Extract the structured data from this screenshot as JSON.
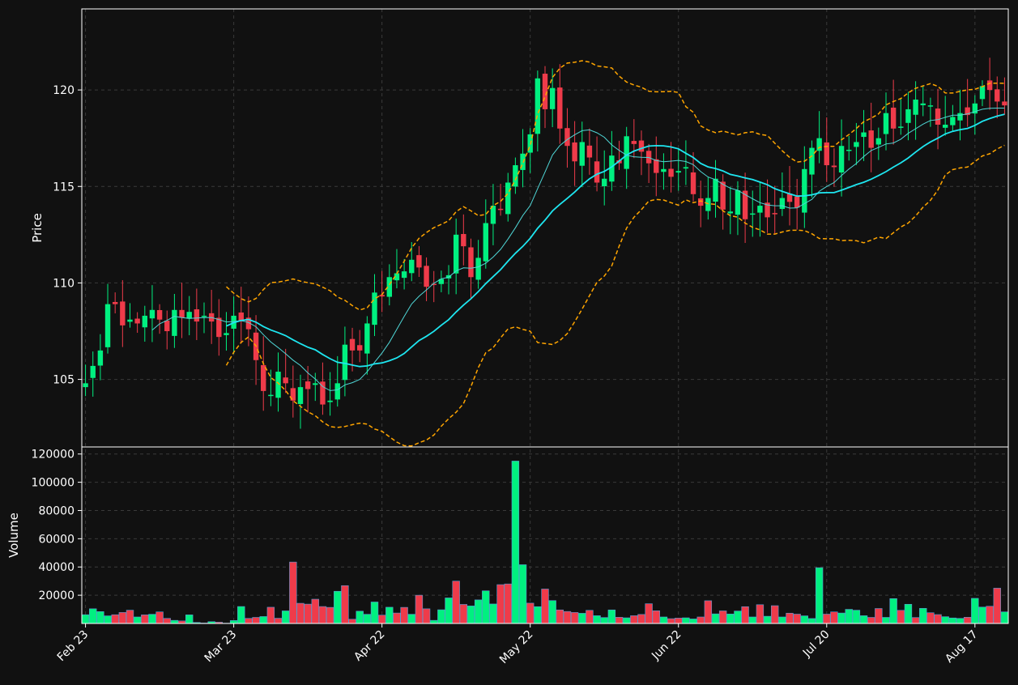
{
  "colors": {
    "background": "#111111",
    "up": "#00f080",
    "down": "#ef3b4a",
    "bollinger": "#ffa500",
    "ma_slow": "#1ee6f0",
    "ma_fast": "#4fd6d6",
    "grid": "#3a3a3a",
    "axes": "#ffffff"
  },
  "chart_data": {
    "type": "candlestick",
    "grid": true,
    "price_panel": {
      "ylabel": "Price",
      "ylim": [
        101.5,
        124.2
      ],
      "yticks": [
        105,
        110,
        115,
        120
      ]
    },
    "volume_panel": {
      "ylabel": "Volume",
      "ylim": [
        0,
        125000
      ],
      "yticks": [
        20000,
        40000,
        60000,
        80000,
        100000,
        120000
      ],
      "ytick_labels": [
        "20000",
        "40000",
        "60000",
        "80000",
        "100000",
        "120000"
      ]
    },
    "x_ticks": [
      {
        "index": 0,
        "label": "Feb 23"
      },
      {
        "index": 20,
        "label": "Mar 23"
      },
      {
        "index": 40,
        "label": "Apr 22"
      },
      {
        "index": 60,
        "label": "May 22"
      },
      {
        "index": 80,
        "label": "Jun 22"
      },
      {
        "index": 100,
        "label": "Jul 20"
      },
      {
        "index": 120,
        "label": "Aug 17"
      }
    ],
    "ohlc_close": [
      104.8,
      105.7,
      106.5,
      108.9,
      108.9,
      107.8,
      108.1,
      107.9,
      108.3,
      108.6,
      108.1,
      107.5,
      108.6,
      108.2,
      108.5,
      108.0,
      108.3,
      108.0,
      107.2,
      107.4,
      108.3,
      108.0,
      107.6,
      106.0,
      104.4,
      104.2,
      105.4,
      104.8,
      103.9,
      104.6,
      104.5,
      104.8,
      103.7,
      103.9,
      104.8,
      106.8,
      106.5,
      106.5,
      107.9,
      109.5,
      109.3,
      110.3,
      110.5,
      110.6,
      111.2,
      110.8,
      109.8,
      109.9,
      110.2,
      110.4,
      112.5,
      111.9,
      110.3,
      111.3,
      113.1,
      114.0,
      113.8,
      115.2,
      116.1,
      116.7,
      117.7,
      120.6,
      119.0,
      120.1,
      118.0,
      117.1,
      116.3,
      117.3,
      116.5,
      115.2,
      115.4,
      116.6,
      116.2,
      117.6,
      117.2,
      116.8,
      116.2,
      115.7,
      115.9,
      115.5,
      115.8,
      116.0,
      114.6,
      114.0,
      114.4,
      115.4,
      113.8,
      113.7,
      114.8,
      113.3,
      113.6,
      114.0,
      113.4,
      113.6,
      114.4,
      114.2,
      113.9,
      115.9,
      117.0,
      117.5,
      116.1,
      116.0,
      117.1,
      116.9,
      117.3,
      117.8,
      117.0,
      117.5,
      118.8,
      118.0,
      118.1,
      119.0,
      119.5,
      119.3,
      119.2,
      118.2,
      118.2,
      118.6,
      118.8,
      118.7,
      119.3,
      120.2,
      120.0,
      119.4,
      119.2
    ],
    "volume": [
      6200,
      10400,
      8400,
      5400,
      6200,
      7800,
      9400,
      4600,
      6100,
      6500,
      8200,
      3600,
      2200,
      1800,
      6100,
      700,
      300,
      1300,
      900,
      200,
      2100,
      12000,
      3600,
      4300,
      4900,
      11500,
      3700,
      8900,
      43500,
      14300,
      13700,
      17200,
      12000,
      11400,
      22800,
      26800,
      3000,
      8700,
      6500,
      15200,
      5900,
      11500,
      7400,
      11400,
      6500,
      20000,
      10400,
      2200,
      9700,
      18100,
      30000,
      13500,
      12400,
      16700,
      23100,
      13800,
      27500,
      28000,
      115000,
      41600,
      14400,
      11900,
      24400,
      16200,
      9600,
      8500,
      7800,
      7200,
      9300,
      5500,
      4200,
      9600,
      4400,
      4000,
      5500,
      6400,
      14000,
      9000,
      4600,
      3400,
      3800,
      4000,
      3200,
      4600,
      16100,
      6800,
      8900,
      6700,
      8800,
      11900,
      4600,
      13300,
      5100,
      12600,
      4600,
      7300,
      6600,
      5400,
      3500,
      39500,
      6600,
      8200,
      7400,
      10000,
      9400,
      5500,
      4300,
      10600,
      4300,
      17600,
      9300,
      13600,
      4200,
      10700,
      7600,
      6300,
      4800,
      3900,
      3600,
      4400,
      17800,
      11600,
      12200,
      25000,
      8200
    ],
    "volume_up": [
      1,
      1,
      1,
      1,
      0,
      0,
      0,
      1,
      0,
      1,
      0,
      0,
      1,
      0,
      1,
      1,
      0,
      1,
      0,
      1,
      1,
      1,
      0,
      0,
      1,
      0,
      0,
      1,
      0,
      0,
      0,
      0,
      0,
      0,
      1,
      0,
      0,
      1,
      1,
      1,
      0,
      1,
      0,
      0,
      1,
      0,
      0,
      1,
      1,
      1,
      0,
      0,
      1,
      1,
      1,
      1,
      0,
      0,
      1,
      1,
      0,
      1,
      0,
      1,
      0,
      0,
      0,
      1,
      0,
      1,
      1,
      1,
      0,
      1,
      0,
      0,
      0,
      0,
      1,
      0,
      0,
      1,
      1,
      0,
      0,
      1,
      0,
      1,
      1,
      0,
      1,
      0,
      1,
      0,
      1,
      0,
      0,
      1,
      1,
      1,
      0,
      0,
      1,
      1,
      1,
      1,
      0,
      0,
      1,
      1,
      0,
      1,
      0,
      1,
      0,
      0,
      1,
      1,
      1,
      0,
      1,
      1,
      0,
      0,
      1
    ],
    "series": [
      {
        "name": "",
        "kind": "sma_slow"
      },
      {
        "name": "",
        "kind": "sma_fast"
      },
      {
        "name": "",
        "kind": "bollinger_upper"
      },
      {
        "name": "",
        "kind": "bollinger_lower"
      }
    ]
  }
}
